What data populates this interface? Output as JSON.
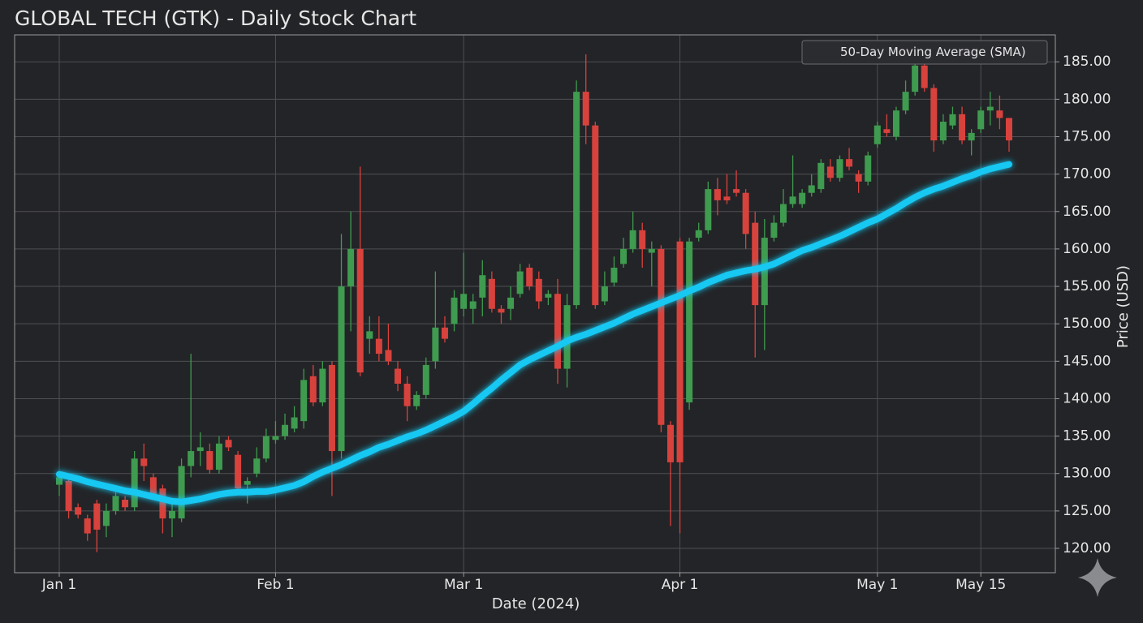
{
  "chart_data": {
    "type": "candlestick",
    "title": "GLOBAL TECH (GTK) - Daily Stock Chart",
    "xlabel": "Date (2024)",
    "ylabel": "Price (USD)",
    "categories": [
      "Jan 1",
      null,
      null,
      null,
      null,
      null,
      null,
      null,
      null,
      null,
      null,
      null,
      null,
      null,
      null,
      null,
      null,
      null,
      null,
      null,
      null,
      null,
      null,
      "Feb 1",
      null,
      null,
      null,
      null,
      null,
      null,
      null,
      null,
      null,
      null,
      null,
      null,
      null,
      null,
      null,
      null,
      null,
      null,
      null,
      "Mar 1",
      null,
      null,
      null,
      null,
      null,
      null,
      null,
      null,
      null,
      null,
      null,
      null,
      null,
      null,
      null,
      null,
      null,
      null,
      null,
      null,
      null,
      null,
      "Apr 1",
      null,
      null,
      null,
      null,
      null,
      null,
      null,
      null,
      null,
      null,
      null,
      null,
      null,
      null,
      null,
      null,
      null,
      null,
      null,
      null,
      "May 1",
      null,
      null,
      null,
      null,
      null,
      null,
      null,
      null,
      null,
      null,
      "May 15",
      null,
      null,
      null
    ],
    "open": [
      128.5,
      129,
      125.5,
      124,
      126,
      123,
      125,
      126.5,
      125.5,
      132,
      129.5,
      128,
      124,
      124,
      131,
      133,
      133,
      130.5,
      134.5,
      132.5,
      128.5,
      130,
      132,
      134.5,
      135,
      136,
      137,
      143,
      139.5,
      144.5,
      133,
      155,
      160,
      148,
      148,
      146.5,
      144,
      142,
      139,
      140.5,
      145,
      149.5,
      150,
      152,
      152,
      153.5,
      156,
      152,
      152,
      154,
      157.5,
      156,
      153.5,
      154,
      144,
      152.5,
      181,
      176.5,
      153,
      155.5,
      158,
      160,
      162.5,
      159.5,
      160,
      136.5,
      161,
      139.5,
      161.5,
      162.5,
      168,
      167,
      168,
      167.5,
      163.5,
      152.5,
      161.5,
      163.5,
      166,
      166,
      167.5,
      168,
      171,
      169.5,
      172,
      170,
      169,
      174,
      176,
      175,
      178.5,
      181,
      184.5,
      181.5,
      174.5,
      176.5,
      178,
      174.5,
      176,
      178.5,
      178.5,
      177.5
    ],
    "high": [
      130,
      129.5,
      126,
      124.5,
      126.5,
      126,
      127.5,
      127,
      133,
      134,
      130,
      128.5,
      126,
      132,
      146,
      135.5,
      134,
      135,
      135,
      133,
      129.5,
      133.5,
      136,
      137,
      138,
      139,
      144,
      144.5,
      145,
      145,
      162,
      165,
      171,
      151,
      151,
      150,
      145,
      143,
      141,
      145.5,
      157,
      151,
      154.5,
      159.5,
      154,
      158.5,
      157,
      152.5,
      155,
      158,
      158,
      157,
      154.5,
      156,
      154,
      182.5,
      186,
      177,
      157,
      159,
      161.5,
      165,
      163.5,
      161,
      160.5,
      137,
      161.5,
      161.5,
      163.5,
      169,
      169.5,
      170,
      170.5,
      168,
      165,
      164,
      164.5,
      168,
      172.5,
      168,
      170,
      172,
      172,
      172.5,
      173.5,
      170.5,
      173,
      177,
      178,
      179,
      182.5,
      186,
      185.5,
      182,
      178,
      179,
      179,
      176,
      179,
      181,
      180.5,
      177.5
    ],
    "low": [
      127,
      124,
      124,
      121,
      119.5,
      121.5,
      124.5,
      125,
      125,
      129,
      126.5,
      122,
      121.5,
      123.5,
      129.5,
      131,
      130,
      130,
      133,
      127.5,
      126,
      129.5,
      131.5,
      134,
      134.5,
      135.5,
      136,
      139,
      139,
      127,
      132,
      149,
      143,
      146,
      145,
      144.5,
      141,
      137,
      138.5,
      140,
      144,
      147.5,
      149,
      151,
      150,
      151,
      151.5,
      150,
      150.5,
      153.5,
      154.5,
      152,
      152.5,
      142,
      141.5,
      152,
      174,
      152,
      152.5,
      155,
      157.5,
      159.5,
      157.5,
      155,
      135.5,
      123,
      122,
      138.5,
      161,
      162,
      164.5,
      166,
      167,
      160,
      145.5,
      146.5,
      161,
      163,
      165.5,
      165.5,
      167,
      167.5,
      169,
      169,
      170.5,
      167.5,
      168.5,
      173.5,
      175,
      174.5,
      178,
      180.5,
      181,
      173,
      174,
      176,
      174,
      172.5,
      175.5,
      176.5,
      176,
      173
    ],
    "close": [
      129.5,
      125,
      124.5,
      122,
      122.5,
      125,
      127,
      125.5,
      132,
      131,
      127,
      124,
      125,
      131,
      133,
      133.5,
      130.5,
      134,
      133.5,
      128,
      129,
      132,
      135,
      135,
      136.5,
      137.5,
      142.5,
      139.5,
      144,
      133,
      155,
      160,
      143.5,
      149,
      146,
      145,
      142,
      139,
      140.5,
      144.5,
      149.5,
      148,
      153.5,
      154,
      153,
      156.5,
      152,
      151.5,
      153.5,
      157,
      155,
      153,
      154,
      144,
      152.5,
      181,
      176.5,
      152.5,
      155,
      157.5,
      160,
      162.5,
      160,
      160,
      136.5,
      131.5,
      131.5,
      161,
      162.5,
      168,
      166.5,
      166.5,
      167.5,
      162,
      152.5,
      161.5,
      163.5,
      166,
      167,
      167.5,
      168.5,
      171.5,
      169.5,
      172,
      171,
      169,
      172.5,
      176.5,
      175.5,
      178.5,
      181,
      184.5,
      181.5,
      174.5,
      177,
      178,
      174.5,
      175.5,
      178.5,
      179,
      177.5,
      174.5
    ],
    "up_color": "#3f9b4f",
    "down_color": "#d8423d",
    "lines": [
      {
        "name": "50-Day Moving Average (SMA)",
        "color": "#14c8f2",
        "values": [
          129.9,
          129.6,
          129.3,
          128.9,
          128.6,
          128.3,
          128,
          127.7,
          127.5,
          127.2,
          126.9,
          126.6,
          126.3,
          126.2,
          126.4,
          126.6,
          126.9,
          127.2,
          127.4,
          127.5,
          127.5,
          127.6,
          127.6,
          127.8,
          128.1,
          128.4,
          128.9,
          129.6,
          130.2,
          130.7,
          131.2,
          131.8,
          132.4,
          132.9,
          133.5,
          133.9,
          134.4,
          134.9,
          135.3,
          135.8,
          136.4,
          137,
          137.6,
          138.3,
          139.3,
          140.4,
          141.4,
          142.5,
          143.5,
          144.5,
          145.2,
          145.8,
          146.4,
          147,
          147.7,
          148.2,
          148.6,
          149.1,
          149.6,
          150.1,
          150.7,
          151.3,
          151.8,
          152.3,
          152.8,
          153.3,
          153.8,
          154.4,
          154.9,
          155.5,
          156,
          156.5,
          156.8,
          157.1,
          157.3,
          157.6,
          158,
          158.6,
          159.2,
          159.8,
          160.2,
          160.7,
          161.2,
          161.7,
          162.3,
          162.9,
          163.5,
          164,
          164.7,
          165.4,
          166.2,
          166.9,
          167.5,
          168,
          168.4,
          168.9,
          169.4,
          169.8,
          170.3,
          170.7,
          171,
          171.3
        ]
      }
    ],
    "ylim": [
      116.75,
      188.6
    ],
    "yticks": [
      {
        "value": 120,
        "label": "120.00"
      },
      {
        "value": 125,
        "label": "125.00"
      },
      {
        "value": 130,
        "label": "130.00"
      },
      {
        "value": 135,
        "label": "135.00"
      },
      {
        "value": 140,
        "label": "140.00"
      },
      {
        "value": 145,
        "label": "145.00"
      },
      {
        "value": 150,
        "label": "150.00"
      },
      {
        "value": 155,
        "label": "155.00"
      },
      {
        "value": 160,
        "label": "160.00"
      },
      {
        "value": 165,
        "label": "165.00"
      },
      {
        "value": 170,
        "label": "170.00"
      },
      {
        "value": 175,
        "label": "175.00"
      },
      {
        "value": 180,
        "label": "180.00"
      },
      {
        "value": 185,
        "label": "185.00"
      }
    ],
    "grid": true,
    "legend": "upper right"
  }
}
